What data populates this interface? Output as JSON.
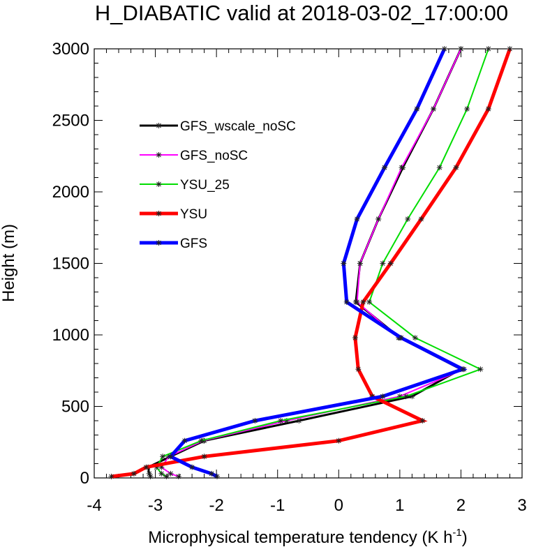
{
  "chart_data": {
    "type": "line",
    "title": "H_DIABATIC valid at 2018-03-02_17:00:00",
    "xlabel": "Microphysical temperature tendency (K h",
    "xlabel_sup": "-1",
    "xlabel_end": ")",
    "ylabel": "Height (m)",
    "xlim": [
      -4,
      3
    ],
    "ylim": [
      0,
      3000
    ],
    "xticks": [
      -4,
      -3,
      -2,
      -1,
      0,
      1,
      2,
      3
    ],
    "yticks": [
      0,
      500,
      1000,
      1500,
      2000,
      2500,
      3000
    ],
    "xtick_labels": [
      "-4",
      "-3",
      "-2",
      "-1",
      "0",
      "1",
      "2",
      "3"
    ],
    "ytick_labels": [
      "0",
      "500",
      "1000",
      "1500",
      "2000",
      "2500",
      "3000"
    ],
    "legend_position": "upper-left",
    "grid": false,
    "heights": [
      10,
      30,
      75,
      150,
      260,
      400,
      570,
      760,
      980,
      1230,
      1500,
      1810,
      2170,
      2580,
      3000
    ],
    "series": [
      {
        "name": "GFS_wscale_noSC",
        "color": "#000000",
        "width": 3,
        "x": [
          -3.08,
          -3.1,
          -3.12,
          -2.75,
          -2.2,
          -0.65,
          1.2,
          2.0,
          1.0,
          0.28,
          0.35,
          0.65,
          1.05,
          1.55,
          2.0
        ]
      },
      {
        "name": "GFS_noSC",
        "color": "#ff00ff",
        "width": 2,
        "x": [
          -2.62,
          -2.75,
          -2.9,
          -2.78,
          -2.22,
          -0.85,
          1.0,
          2.05,
          0.98,
          0.3,
          0.35,
          0.65,
          1.03,
          1.55,
          2.0
        ]
      },
      {
        "name": "YSU_25",
        "color": "#00dd00",
        "width": 2,
        "x": [
          -2.82,
          -2.9,
          -2.98,
          -2.88,
          -2.25,
          -0.95,
          1.1,
          2.32,
          1.25,
          0.5,
          0.72,
          1.13,
          1.65,
          2.1,
          2.45
        ]
      },
      {
        "name": "YSU",
        "color": "#ff0000",
        "width": 5,
        "x": [
          -3.72,
          -3.35,
          -3.15,
          -2.2,
          0.0,
          1.37,
          0.55,
          0.32,
          0.27,
          0.4,
          0.85,
          1.35,
          1.92,
          2.45,
          2.8
        ]
      },
      {
        "name": "GFS",
        "color": "#0000ff",
        "width": 5,
        "x": [
          -1.99,
          -2.08,
          -2.4,
          -2.75,
          -2.52,
          -1.37,
          0.72,
          2.03,
          1.02,
          0.13,
          0.08,
          0.3,
          0.75,
          1.28,
          1.73
        ]
      }
    ]
  }
}
